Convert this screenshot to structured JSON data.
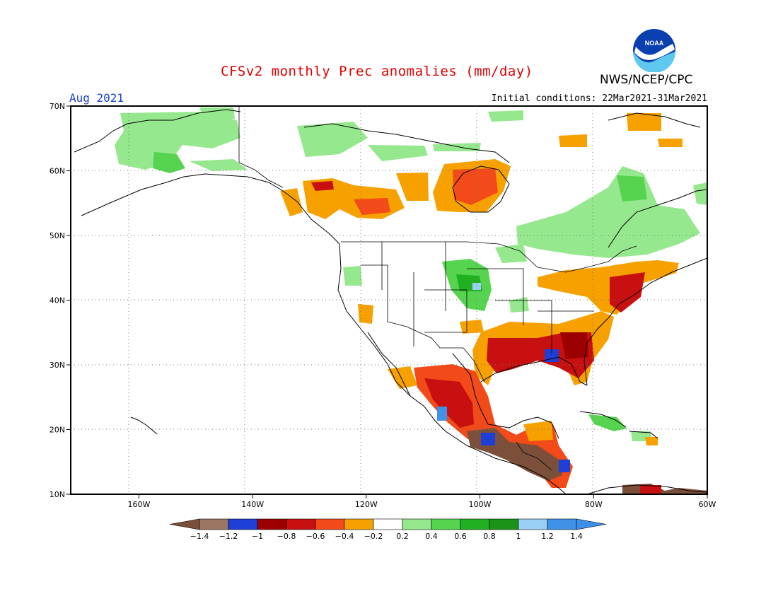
{
  "header": {
    "title": "CFSv2 monthly Prec anomalies (mm/day)",
    "agency": "NWS/NCEP/CPC",
    "logo_text": "NOAA",
    "month": "Aug 2021",
    "initial_conditions": "Initial conditions: 22Mar2021-31Mar2021"
  },
  "map": {
    "lon_range": [
      -172,
      -60
    ],
    "lat_range": [
      10,
      70
    ],
    "lat_ticks": [
      {
        "value": 70,
        "label": "70N"
      },
      {
        "value": 60,
        "label": "60N"
      },
      {
        "value": 50,
        "label": "50N"
      },
      {
        "value": 40,
        "label": "40N"
      },
      {
        "value": 30,
        "label": "30N"
      },
      {
        "value": 20,
        "label": "20N"
      },
      {
        "value": 10,
        "label": "10N"
      }
    ],
    "lon_ticks": [
      {
        "value": -160,
        "label": "160W"
      },
      {
        "value": -140,
        "label": "140W"
      },
      {
        "value": -120,
        "label": "120W"
      },
      {
        "value": -100,
        "label": "100W"
      },
      {
        "value": -80,
        "label": "80W"
      },
      {
        "value": -60,
        "label": "60W"
      }
    ],
    "gridlines": "dotted"
  },
  "colorbar": {
    "labels": [
      "-1.4",
      "-1.2",
      "-1",
      "-0.8",
      "-0.6",
      "-0.4",
      "-0.2",
      "0.2",
      "0.4",
      "0.6",
      "0.8",
      "1",
      "1.2",
      "1.4"
    ],
    "colors": [
      "#7b4f3a",
      "#9c7663",
      "#1d3fd6",
      "#9c0000",
      "#c81010",
      "#f24a18",
      "#f6a100",
      "#ffffff",
      "#96e88e",
      "#56d44f",
      "#22b023",
      "#1a9318",
      "#9ad0f5",
      "#3f92e8",
      "#3c8fe6"
    ]
  },
  "anomaly_regions": [
    {
      "name": "wet-alaska",
      "category": "0.2 to 0.4",
      "bbox_deg": [
        -166,
        -143,
        60,
        68
      ]
    },
    {
      "name": "dry-western-canada",
      "category": "-0.6 to -0.4",
      "bbox_deg": [
        -127,
        -115,
        54,
        58
      ]
    },
    {
      "name": "dry-hudson-bay",
      "category": "-0.8 to -0.4",
      "bbox_deg": [
        -106,
        -95,
        55,
        62
      ]
    },
    {
      "name": "wet-eastern-canada",
      "category": "0.2 to 0.6",
      "bbox_deg": [
        -84,
        -70,
        45,
        58
      ]
    },
    {
      "name": "dry-us-southeast",
      "category": "-1 to -0.4",
      "bbox_deg": [
        -97,
        -76,
        28,
        38
      ]
    },
    {
      "name": "dry-us-northeast",
      "category": "-0.8 to -0.4",
      "bbox_deg": [
        -83,
        -70,
        38,
        45
      ]
    },
    {
      "name": "wet-central-plains",
      "category": "0.2 to 0.6",
      "bbox_deg": [
        -105,
        -97,
        38,
        44
      ]
    },
    {
      "name": "dry-mexico-central-america",
      "category": "-1.4 to -0.4",
      "bbox_deg": [
        -108,
        -84,
        12,
        30
      ]
    },
    {
      "name": "wet-caribbean",
      "category": "0.2 to 0.6",
      "bbox_deg": [
        -83,
        -74,
        19,
        23
      ]
    }
  ]
}
